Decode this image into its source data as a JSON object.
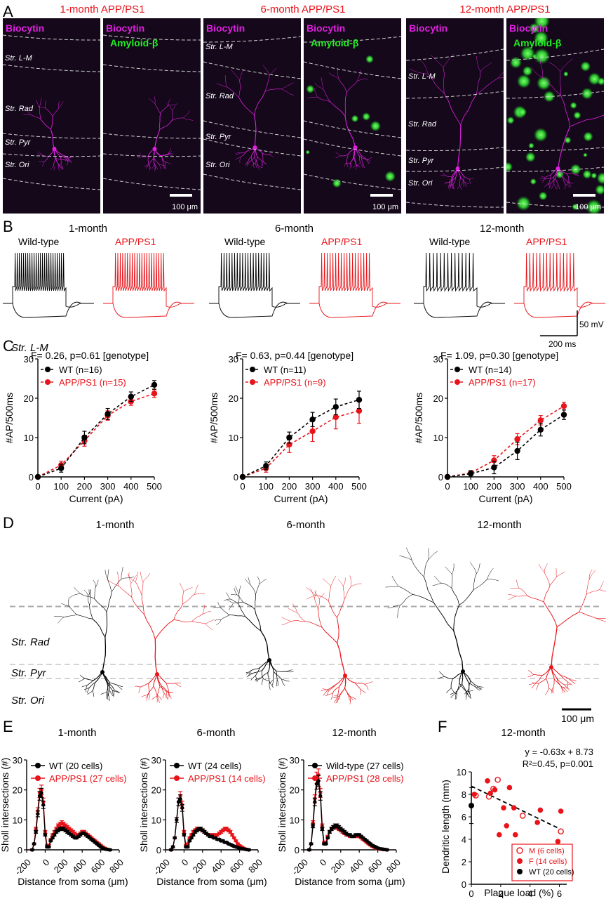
{
  "panels": {
    "A": "A",
    "B": "B",
    "C": "C",
    "D": "D",
    "E": "E",
    "F": "F"
  },
  "colors": {
    "wt": "#000000",
    "app": "#e8141a",
    "biocytin": "#e020e0",
    "amyloid": "#22ee22",
    "guide": "#aaaaaa"
  },
  "panelA": {
    "titles": [
      "1-month APP/PS1",
      "6-month APP/PS1",
      "12-month APP/PS1"
    ],
    "biocytin": "Biocytin",
    "amyloid": "Amyloid-β",
    "layers": [
      "Str. L-M",
      "Str. Rad",
      "Str. Pyr",
      "Str. Ori"
    ],
    "scalebar": "100 μm"
  },
  "panelB": {
    "ages": [
      "1-month",
      "6-month",
      "12-month"
    ],
    "wt_label": "Wild-type",
    "app_label": "APP/PS1",
    "spikes": {
      "wt": [
        24,
        19,
        14
      ],
      "app": [
        21,
        18,
        15
      ]
    },
    "scale_v": "50 mV",
    "scale_t": "200 ms"
  },
  "chart_data": [
    {
      "type": "line",
      "panel": "C",
      "subtitle": "1-month",
      "title": "F= 0.26, p=0.61 [genotype]",
      "xlabel": "Current (pA)",
      "ylabel": "#AP/500ms",
      "x": [
        0,
        100,
        200,
        300,
        400,
        500
      ],
      "xlim": [
        0,
        500
      ],
      "ylim": [
        0,
        30
      ],
      "xticks": [
        "0",
        "100",
        "200",
        "300",
        "400",
        "500"
      ],
      "yticks": [
        "0",
        "10",
        "20",
        "30"
      ],
      "series": [
        {
          "name": "WT (n=16)",
          "values": [
            0,
            2.2,
            10.0,
            16.0,
            20.4,
            23.4
          ],
          "err": [
            0,
            1.0,
            1.6,
            1.4,
            1.2,
            1.1
          ]
        },
        {
          "name": "APP/PS1 (n=15)",
          "values": [
            0,
            3.0,
            9.2,
            15.6,
            19.2,
            21.2
          ],
          "err": [
            0,
            1.0,
            1.4,
            1.2,
            1.0,
            1.0
          ]
        }
      ]
    },
    {
      "type": "line",
      "panel": "C",
      "subtitle": "6-month",
      "title": "F= 0.63, p=0.44 [genotype]",
      "xlabel": "Current (pA)",
      "ylabel": "#AP/500ms",
      "x": [
        0,
        100,
        200,
        300,
        400,
        500
      ],
      "xlim": [
        0,
        500
      ],
      "ylim": [
        0,
        30
      ],
      "xticks": [
        "0",
        "100",
        "200",
        "300",
        "400",
        "500"
      ],
      "yticks": [
        "0",
        "10",
        "20",
        "30"
      ],
      "series": [
        {
          "name": "WT (n=11)",
          "values": [
            0,
            2.8,
            10.0,
            14.6,
            17.8,
            19.6
          ],
          "err": [
            0,
            1.0,
            1.4,
            1.8,
            2.0,
            2.2
          ]
        },
        {
          "name": "APP/PS1 (n=9)",
          "values": [
            0,
            2.2,
            8.2,
            11.6,
            15.2,
            16.8
          ],
          "err": [
            0,
            1.0,
            2.0,
            2.6,
            3.0,
            3.2
          ]
        }
      ]
    },
    {
      "type": "line",
      "panel": "C",
      "subtitle": "12-month",
      "title": "F= 1.09, p=0.30 [genotype]",
      "xlabel": "Current (pA)",
      "ylabel": "#AP/500ms",
      "x": [
        0,
        100,
        200,
        300,
        400,
        500
      ],
      "xlim": [
        0,
        500
      ],
      "ylim": [
        0,
        30
      ],
      "xticks": [
        "0",
        "100",
        "200",
        "300",
        "400",
        "500"
      ],
      "yticks": [
        "0",
        "10",
        "20",
        "30"
      ],
      "series": [
        {
          "name": "WT (n=14)",
          "values": [
            0,
            0.8,
            2.4,
            6.6,
            12.0,
            15.8
          ],
          "err": [
            0,
            0.8,
            1.6,
            2.2,
            1.6,
            1.2
          ]
        },
        {
          "name": "APP/PS1 (n=17)",
          "values": [
            0,
            1.0,
            4.2,
            9.6,
            14.4,
            18.0
          ],
          "err": [
            0,
            0.6,
            1.2,
            1.4,
            1.2,
            1.0
          ]
        }
      ]
    },
    {
      "type": "line",
      "panel": "E",
      "title": "1-month",
      "xlabel": "Distance from soma (μm)",
      "ylabel": "Sholl intersections (#)",
      "xlim": [
        -200,
        800
      ],
      "ylim": [
        0,
        30
      ],
      "xticks": [
        "-200",
        "0",
        "200",
        "400",
        "600",
        "800"
      ],
      "yticks": [
        "0",
        "10",
        "20",
        "30"
      ],
      "series": [
        {
          "name": "WT (20 cells)",
          "x": [
            -140,
            -120,
            -100,
            -80,
            -60,
            -40,
            -20,
            0,
            20,
            40,
            60,
            80,
            100,
            120,
            140,
            160,
            180,
            200,
            220,
            240,
            260,
            280,
            300,
            320,
            340,
            360,
            380,
            400,
            420,
            440,
            460,
            480,
            500,
            520,
            540,
            560,
            580,
            600,
            620,
            640,
            660,
            680,
            700
          ],
          "values": [
            0,
            2,
            6,
            12,
            18,
            19,
            15,
            5,
            1,
            1,
            3,
            4,
            5,
            6,
            6.5,
            7,
            7,
            7,
            6.5,
            6,
            5.5,
            5,
            4.5,
            4,
            4,
            4.5,
            5,
            5.5,
            5.5,
            5,
            4.5,
            4,
            3.5,
            3,
            2.5,
            2,
            1.5,
            1,
            0.6,
            0.3,
            0.2,
            0.1,
            0
          ]
        },
        {
          "name": "APP/PS1 (27 cells)",
          "x": [
            -140,
            -120,
            -100,
            -80,
            -60,
            -40,
            -20,
            0,
            20,
            40,
            60,
            80,
            100,
            120,
            140,
            160,
            180,
            200,
            220,
            240,
            260,
            280,
            300,
            320,
            340,
            360,
            380,
            400,
            420,
            440,
            460,
            480,
            500,
            520,
            540,
            560,
            580,
            600,
            620,
            640,
            660,
            680,
            700
          ],
          "values": [
            0,
            2,
            7,
            13,
            19,
            20,
            16,
            6,
            1.5,
            1.5,
            3.5,
            5,
            6,
            7,
            8,
            8.5,
            9,
            8.5,
            8,
            7.5,
            7,
            6.5,
            6,
            5.5,
            5,
            5,
            5.5,
            6,
            6,
            5.5,
            5,
            4.5,
            4,
            3.5,
            3,
            2.5,
            2,
            1.5,
            1,
            0.6,
            0.3,
            0.1,
            0
          ]
        }
      ]
    },
    {
      "type": "line",
      "panel": "E",
      "title": "6-month",
      "xlabel": "Distance from soma (μm)",
      "ylabel": "Sholl intersections (#)",
      "xlim": [
        -200,
        800
      ],
      "ylim": [
        0,
        30
      ],
      "xticks": [
        "-200",
        "0",
        "200",
        "400",
        "600",
        "800"
      ],
      "yticks": [
        "0",
        "10",
        "20",
        "30"
      ],
      "series": [
        {
          "name": "WT (24 cells)",
          "x": [
            -140,
            -120,
            -100,
            -80,
            -60,
            -40,
            -20,
            0,
            20,
            40,
            60,
            80,
            100,
            120,
            140,
            160,
            180,
            200,
            220,
            240,
            260,
            280,
            300,
            320,
            340,
            360,
            380,
            400,
            420,
            440,
            460,
            480,
            500,
            520,
            540,
            560,
            580,
            600,
            620,
            640,
            660,
            680,
            700
          ],
          "values": [
            0,
            1,
            4,
            10,
            16,
            17,
            14,
            5,
            1,
            1,
            3,
            4,
            5,
            6,
            6.5,
            7,
            7,
            6.5,
            6,
            5.5,
            5,
            4.5,
            4.5,
            4,
            4,
            3.5,
            3.5,
            3,
            3,
            2.5,
            2.5,
            2,
            1.8,
            1.5,
            1.2,
            1,
            0.8,
            0.6,
            0.4,
            0.3,
            0.2,
            0.1,
            0
          ]
        },
        {
          "name": "APP/PS1 (14 cells)",
          "x": [
            -140,
            -120,
            -100,
            -80,
            -60,
            -40,
            -20,
            0,
            20,
            40,
            60,
            80,
            100,
            120,
            140,
            160,
            180,
            200,
            220,
            240,
            260,
            280,
            300,
            320,
            340,
            360,
            380,
            400,
            420,
            440,
            460,
            480,
            500,
            520,
            540,
            560,
            580,
            600,
            620,
            640,
            660,
            680,
            700
          ],
          "values": [
            0,
            1,
            4,
            10,
            16,
            18,
            15,
            6,
            1.5,
            2,
            4,
            5,
            6,
            6.5,
            7,
            7,
            7,
            6.5,
            6,
            5.5,
            5,
            5,
            5,
            5,
            5,
            5,
            5.5,
            6,
            6.5,
            7,
            7,
            6.5,
            6,
            5,
            4,
            3,
            2,
            1.4,
            1,
            0.6,
            0.3,
            0.1,
            0
          ]
        }
      ]
    },
    {
      "type": "line",
      "panel": "E",
      "title": "12-month",
      "xlabel": "Distance from soma (μm)",
      "ylabel": "Sholl intersections (#)",
      "xlim": [
        -200,
        800
      ],
      "ylim": [
        0,
        30
      ],
      "xticks": [
        "-200",
        "0",
        "200",
        "400",
        "600",
        "800"
      ],
      "yticks": [
        "0",
        "10",
        "20",
        "30"
      ],
      "series": [
        {
          "name": "Wild-type (27 cells)",
          "x": [
            -140,
            -120,
            -100,
            -80,
            -60,
            -40,
            -20,
            0,
            20,
            40,
            60,
            80,
            100,
            120,
            140,
            160,
            180,
            200,
            220,
            240,
            260,
            280,
            300,
            320,
            340,
            360,
            380,
            400,
            420,
            440,
            460,
            480,
            500,
            520,
            540,
            560,
            580,
            600,
            620,
            640,
            660,
            680,
            700
          ],
          "values": [
            0,
            2,
            8,
            16,
            22,
            23,
            18,
            7,
            2,
            2,
            4,
            6,
            7,
            7.5,
            8,
            8,
            7.5,
            7,
            6.5,
            6,
            5.5,
            5,
            5,
            4.5,
            4.5,
            5,
            5,
            5,
            4.5,
            4,
            3.5,
            3,
            2.5,
            2,
            1.5,
            1.2,
            0.9,
            0.6,
            0.4,
            0.3,
            0.2,
            0.1,
            0
          ]
        },
        {
          "name": "APP/PS1 (28 cells)",
          "x": [
            -140,
            -120,
            -100,
            -80,
            -60,
            -40,
            -20,
            0,
            20,
            40,
            60,
            80,
            100,
            120,
            140,
            160,
            180,
            200,
            220,
            240,
            260,
            280,
            300,
            320,
            340,
            360,
            380,
            400,
            420,
            440,
            460,
            480,
            500,
            520,
            540,
            560,
            580,
            600,
            620,
            640,
            660,
            680,
            700
          ],
          "values": [
            0,
            2,
            9,
            17,
            24,
            25,
            19,
            8,
            2.5,
            2.5,
            4.5,
            6,
            7,
            7.5,
            7.5,
            7.5,
            7,
            6.5,
            6,
            5.5,
            5,
            5,
            4.5,
            4.5,
            4.5,
            4.5,
            4.5,
            4.5,
            4,
            3.5,
            3,
            2.5,
            2,
            1.6,
            1.2,
            0.9,
            0.6,
            0.4,
            0.3,
            0.2,
            0.1,
            0.1,
            0
          ]
        }
      ]
    },
    {
      "type": "scatter",
      "panel": "F",
      "title": "12-month",
      "xlabel": "Plaque load (%)",
      "ylabel": "Dendritic length (mm)",
      "xlim": [
        0,
        6.5
      ],
      "ylim": [
        0,
        10
      ],
      "xticks": [
        "0",
        "2",
        "4",
        "6"
      ],
      "yticks": [
        "0",
        "2",
        "4",
        "6",
        "8",
        "10"
      ],
      "annotation_eq": "y = -0.63x + 8.73",
      "annotation_r2": "R²=0.45, p=0.001",
      "fit": {
        "slope": -0.63,
        "intercept": 8.73
      },
      "series": [
        {
          "name": "M (6 cells)",
          "marker": "open",
          "x": [
            0.3,
            1.2,
            1.5,
            1.8,
            3.5,
            6.1
          ],
          "y": [
            7.9,
            7.8,
            8.5,
            9.3,
            6.1,
            4.7
          ]
        },
        {
          "name": "F (14 cells)",
          "marker": "filled",
          "x": [
            0.2,
            1.1,
            1.3,
            1.6,
            1.9,
            2.2,
            2.4,
            2.6,
            2.9,
            3.0,
            4.5,
            4.7,
            5.9,
            6.1
          ],
          "y": [
            8.0,
            9.2,
            8.1,
            8.4,
            4.4,
            6.8,
            5.2,
            8.6,
            6.8,
            4.4,
            5.5,
            6.6,
            3.8,
            6.5
          ]
        },
        {
          "name": "WT (20 cells)",
          "marker": "filled-black",
          "x": [
            0
          ],
          "y": [
            7.0
          ],
          "err": [
            1.6
          ]
        }
      ]
    }
  ],
  "panelD": {
    "ages": [
      "1-month",
      "6-month",
      "12-month"
    ],
    "layers": [
      "Str. L-M",
      "Str. Rad",
      "Str. Pyr",
      "Str. Ori"
    ],
    "scalebar": "100 μm"
  }
}
